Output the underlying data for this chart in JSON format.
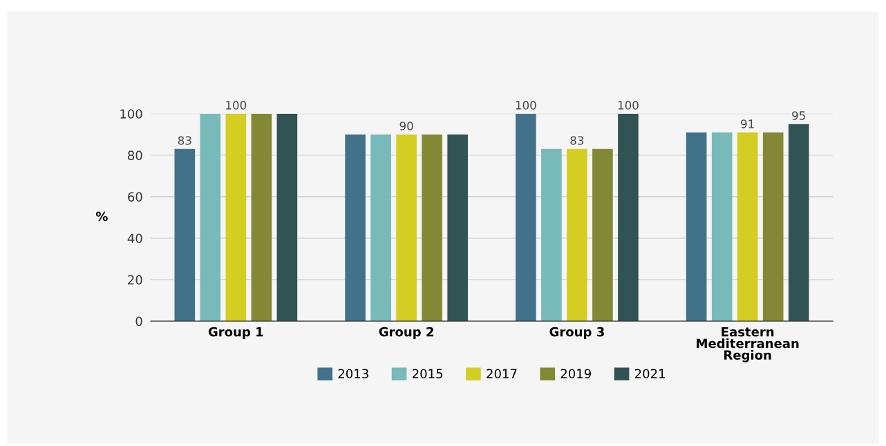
{
  "chart_data": {
    "type": "bar",
    "ylabel": "%",
    "categories": [
      "Group 1",
      "Group 2",
      "Group 3",
      "Eastern\nMediterranean\nRegion"
    ],
    "series": [
      {
        "name": "2013",
        "color": "#41728a",
        "values": [
          83,
          90,
          100,
          91
        ],
        "value_labels": [
          "83",
          null,
          "100",
          null
        ]
      },
      {
        "name": "2015",
        "color": "#78b9b9",
        "values": [
          100,
          90,
          83,
          91
        ],
        "value_labels": [
          null,
          null,
          null,
          null
        ]
      },
      {
        "name": "2017",
        "color": "#d4cd22",
        "values": [
          100,
          90,
          83,
          91
        ],
        "value_labels": [
          "100",
          "90",
          "83",
          "91"
        ]
      },
      {
        "name": "2019",
        "color": "#838834",
        "values": [
          100,
          90,
          83,
          91
        ],
        "value_labels": [
          null,
          null,
          null,
          null
        ]
      },
      {
        "name": "2021",
        "color": "#325353",
        "values": [
          100,
          90,
          100,
          95
        ],
        "value_labels": [
          null,
          null,
          "100",
          "95"
        ]
      }
    ],
    "ylim": [
      0,
      100
    ],
    "yticks": [
      0,
      20,
      40,
      60,
      80,
      100
    ],
    "grid": "y",
    "legend": "bottom"
  }
}
